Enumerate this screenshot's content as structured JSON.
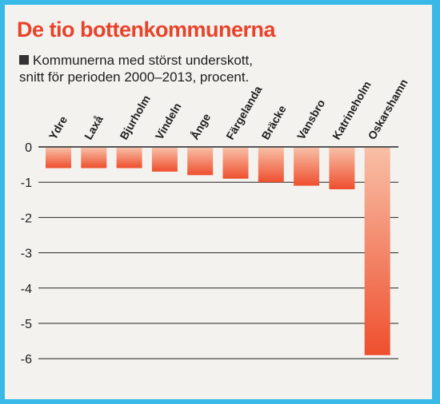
{
  "header": {
    "title": "De tio bottenkommunerna",
    "subtitle_line1": "Kommunerna med störst underskott,",
    "subtitle_line2": "snitt för perioden 2000–2013, procent."
  },
  "colors": {
    "background": "#38b9e8",
    "title": "#e8432a",
    "bar_top": "#f8bfa6",
    "bar_bottom": "#ee4f2e"
  },
  "chart_data": {
    "type": "bar",
    "orientation": "vertical",
    "categories": [
      "Ydre",
      "Laxå",
      "Bjurholm",
      "Vindeln",
      "Ånge",
      "Färgelanda",
      "Bräcke",
      "Vansbro",
      "Katrineholm",
      "Oskarshamn"
    ],
    "values": [
      -0.6,
      -0.6,
      -0.6,
      -0.7,
      -0.8,
      -0.9,
      -1.0,
      -1.1,
      -1.2,
      -5.9
    ],
    "title": "De tio bottenkommunerna",
    "subtitle": "Kommunerna med störst underskott, snitt för perioden 2000–2013, procent.",
    "xlabel": "",
    "ylabel": "",
    "ylim": [
      -6,
      0
    ],
    "yticks": [
      0,
      -1,
      -2,
      -3,
      -4,
      -5,
      -6
    ],
    "grid": true,
    "legend": "none"
  }
}
